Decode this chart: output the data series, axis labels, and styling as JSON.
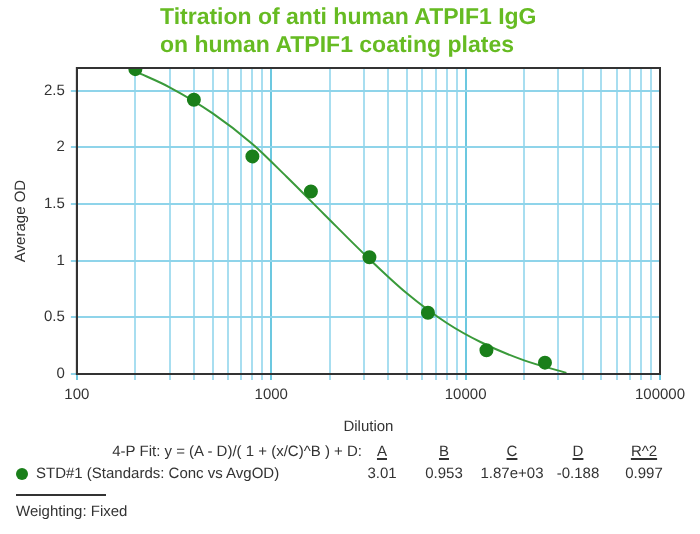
{
  "chart_data": {
    "type": "scatter",
    "title": "Titration of anti human ATPIF1 IgG on human ATPIF1 coating plates",
    "xlabel": "Dilution",
    "ylabel": "Average OD",
    "log": "x",
    "grid": true,
    "legend": "bottom",
    "marker": "circle",
    "xlim": [
      100,
      100000
    ],
    "xticks": [
      100,
      {
        "value": 200,
        "label": null
      },
      {
        "value": 300,
        "label": null
      },
      {
        "value": 400,
        "label": null
      },
      {
        "value": 500,
        "label": null
      },
      {
        "value": 600,
        "label": null
      },
      {
        "value": 700,
        "label": null
      },
      {
        "value": 800,
        "label": null
      },
      {
        "value": 900,
        "label": null
      },
      1000,
      {
        "value": 2000,
        "label": null
      },
      {
        "value": 3000,
        "label": null
      },
      {
        "value": 4000,
        "label": null
      },
      {
        "value": 5000,
        "label": null
      },
      {
        "value": 6000,
        "label": null
      },
      {
        "value": 7000,
        "label": null
      },
      {
        "value": 8000,
        "label": null
      },
      {
        "value": 9000,
        "label": null
      },
      10000,
      {
        "value": 20000,
        "label": null
      },
      {
        "value": 30000,
        "label": null
      },
      {
        "value": 40000,
        "label": null
      },
      {
        "value": 50000,
        "label": null
      },
      {
        "value": 60000,
        "label": null
      },
      {
        "value": 70000,
        "label": null
      },
      {
        "value": 80000,
        "label": null
      },
      {
        "value": 90000,
        "label": null
      },
      100000
    ],
    "ylim": [
      0,
      2.7
    ],
    "yticks": [
      0,
      0.5,
      1,
      1.5,
      2,
      2.5
    ],
    "series": [
      {
        "name": "STD#1 (Standards: Conc vs AvgOD)",
        "color": "#1a7f1a",
        "x": [
          200,
          400,
          800,
          1600,
          3200,
          6400,
          12800,
          25600
        ],
        "values": [
          2.69,
          2.42,
          1.92,
          1.61,
          1.03,
          0.54,
          0.21,
          0.1
        ]
      },
      {
        "type": "line",
        "color": "#3a9a3a",
        "marker": "none",
        "x": [
          200,
          300,
          500,
          800,
          1200,
          1870,
          3000,
          5000,
          8000,
          12000,
          20000,
          33000
        ],
        "values": [
          2.67,
          2.53,
          2.3,
          2.03,
          1.74,
          1.41,
          1.06,
          0.71,
          0.45,
          0.28,
          0.12,
          0.01
        ]
      }
    ],
    "annotations": [
      "4-P Fit: y = (A - D)/( 1 + (x/C)^B ) + D:",
      "A",
      "B",
      "C",
      "D",
      "R^2",
      "3.01",
      "0.953",
      "1.87e+03",
      "-0.188",
      "0.997",
      "Weighting: Fixed"
    ]
  }
}
